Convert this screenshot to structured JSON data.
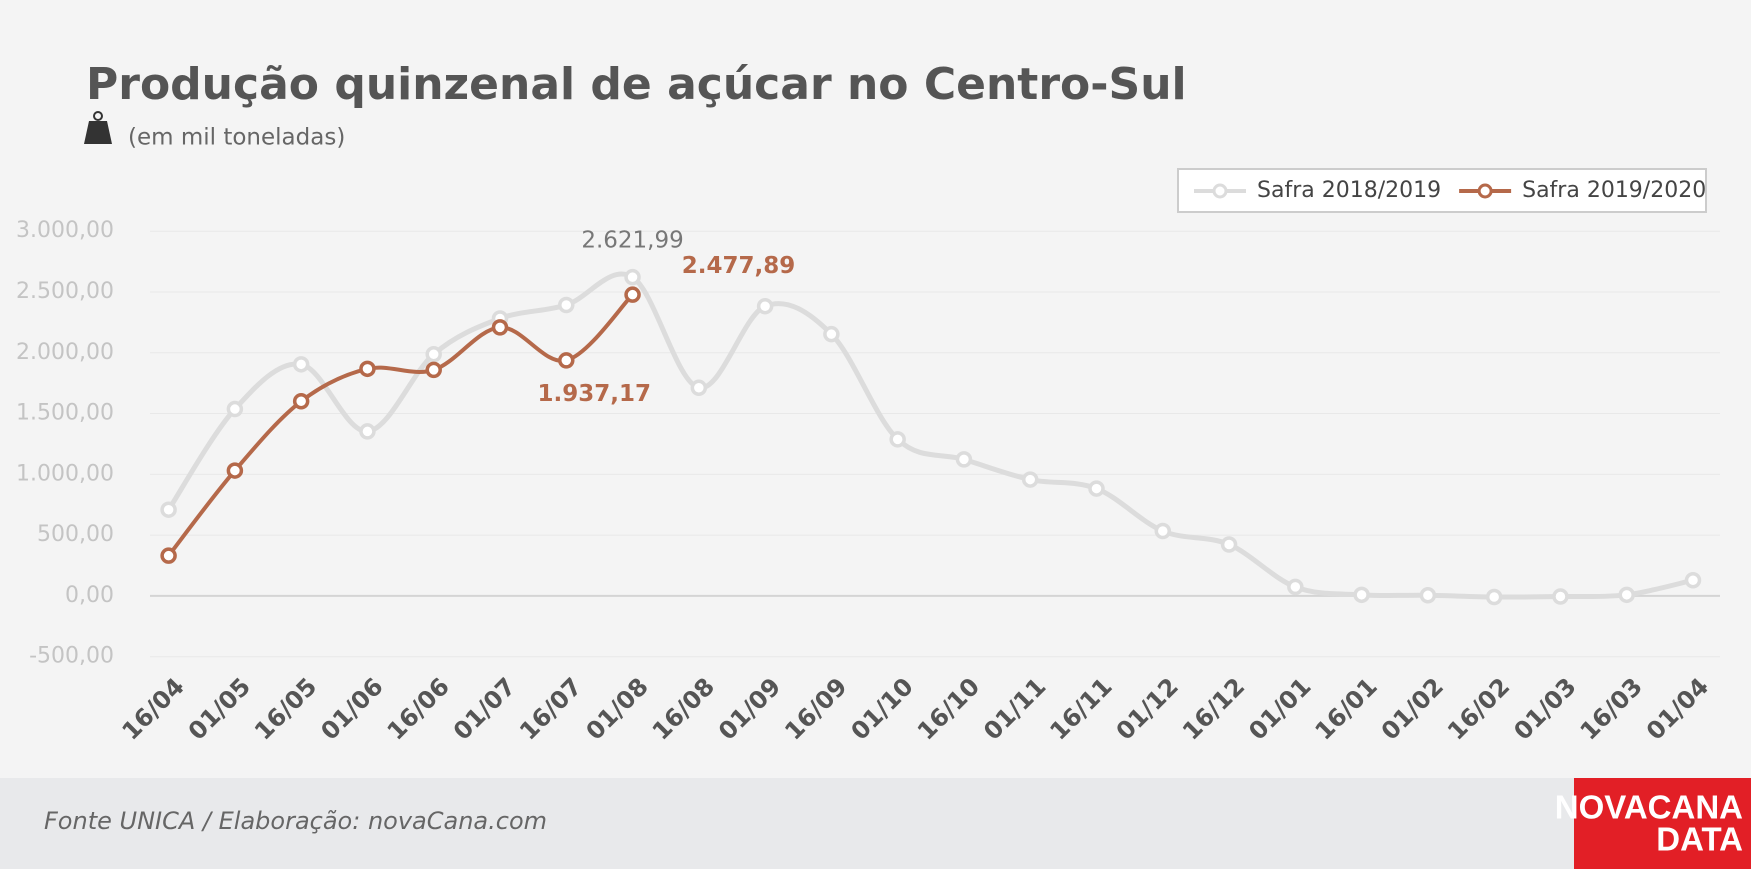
{
  "chart_data": {
    "type": "line",
    "title": "Produção quinzenal de açúcar no Centro-Sul",
    "subtitle": "(em mil toneladas)",
    "categories": [
      "16/04",
      "01/05",
      "16/05",
      "01/06",
      "16/06",
      "01/07",
      "16/07",
      "01/08",
      "16/08",
      "01/09",
      "16/09",
      "01/10",
      "16/10",
      "01/11",
      "16/11",
      "01/12",
      "16/12",
      "01/01",
      "16/01",
      "01/02",
      "16/02",
      "01/03",
      "16/03",
      "01/04"
    ],
    "series": [
      {
        "name": "Safra 2018/2019",
        "color": "#dcdcdc",
        "values": [
          709,
          1537,
          1905,
          1353,
          1988,
          2282,
          2393,
          2621.99,
          1712,
          2383,
          2153,
          1288,
          1123,
          957,
          883,
          534,
          423,
          74,
          9,
          5,
          -9,
          -5,
          9,
          129
        ],
        "value_labels": [
          null,
          null,
          null,
          null,
          null,
          null,
          null,
          "2.621,99",
          null,
          null,
          null,
          null,
          null,
          null,
          null,
          null,
          null,
          null,
          null,
          null,
          null,
          null,
          null,
          null
        ]
      },
      {
        "name": "Safra 2019/2020",
        "color": "#b5694a",
        "values": [
          331,
          1031,
          1601,
          1868,
          1859,
          2209,
          1937.17,
          2477.89,
          null,
          null,
          null,
          null,
          null,
          null,
          null,
          null,
          null,
          null,
          null,
          null,
          null,
          null,
          null,
          null
        ],
        "value_labels": [
          null,
          null,
          null,
          null,
          null,
          null,
          "1.937,17",
          "2.477,89",
          null,
          null,
          null,
          null,
          null,
          null,
          null,
          null,
          null,
          null,
          null,
          null,
          null,
          null,
          null,
          null
        ]
      }
    ],
    "ylim": [
      -500,
      3000
    ],
    "yticks": [
      {
        "value": -500,
        "label": "-500,00"
      },
      {
        "value": 0,
        "label": "0,00"
      },
      {
        "value": 500,
        "label": "500,00"
      },
      {
        "value": 1000,
        "label": "1.000,00"
      },
      {
        "value": 1500,
        "label": "1.500,00"
      },
      {
        "value": 2000,
        "label": "2.000,00"
      },
      {
        "value": 2500,
        "label": "2.500,00"
      },
      {
        "value": 3000,
        "label": "3.000,00"
      }
    ],
    "grid": true,
    "legend": "top-right",
    "source": "Fonte UNICA / Elaboração: novaCana.com",
    "logo": [
      "NOVACANA",
      "DATA"
    ]
  }
}
